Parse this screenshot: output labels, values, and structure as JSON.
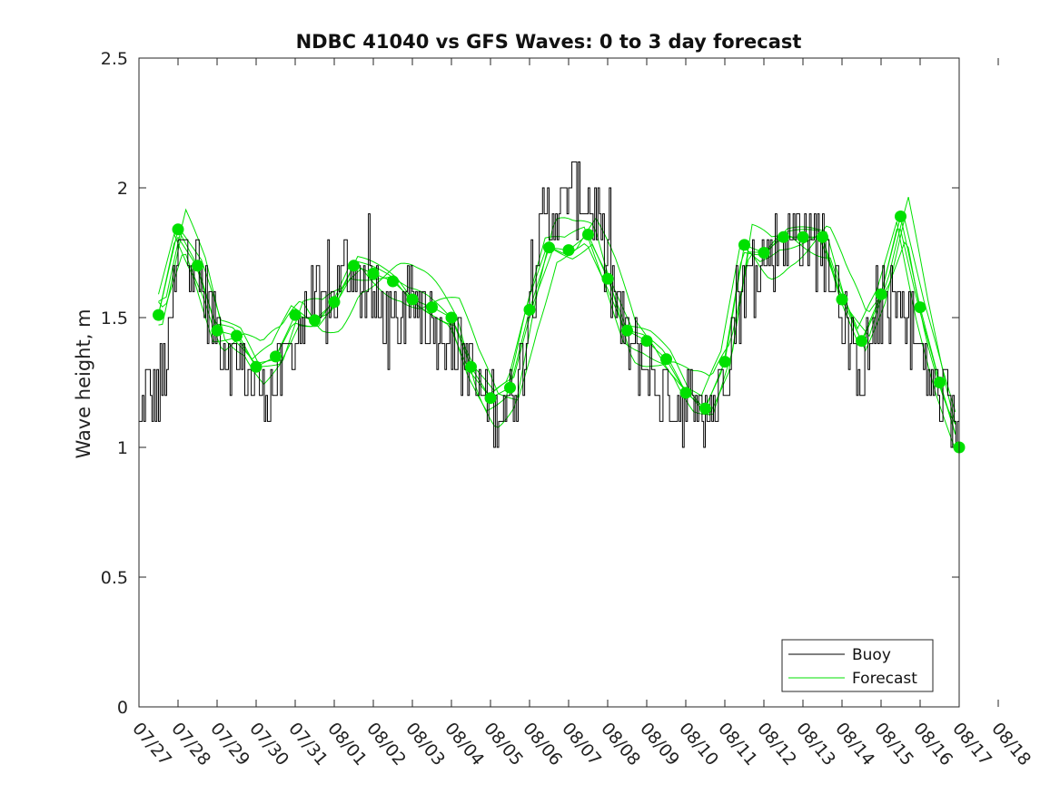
{
  "chart_data": {
    "type": "line",
    "title": "NDBC 41040 vs GFS Waves: 0 to 3 day forecast",
    "xlabel": "",
    "ylabel": "Wave height, m",
    "ylim": [
      0,
      2.5
    ],
    "y_ticks": [
      0,
      0.5,
      1,
      1.5,
      2,
      2.5
    ],
    "y_tick_labels": [
      "0",
      "0.5",
      "1",
      "1.5",
      "2",
      "2.5"
    ],
    "x_range_days": [
      0,
      21
    ],
    "x_tick_labels": [
      "07/27",
      "07/28",
      "07/29",
      "07/30",
      "07/31",
      "08/01",
      "08/02",
      "08/03",
      "08/04",
      "08/05",
      "08/06",
      "08/07",
      "08/08",
      "08/09",
      "08/10",
      "08/11",
      "08/12",
      "08/13",
      "08/14",
      "08/15",
      "08/16",
      "08/17",
      "08/18"
    ],
    "legend": {
      "placement": "bottom-right",
      "entries": [
        "Buoy",
        "Forecast"
      ]
    },
    "colors": {
      "buoy": "#000000",
      "forecast": "#00e000",
      "marker": "#00e000"
    },
    "buoy_anchors": [
      [
        0.0,
        1.05
      ],
      [
        0.15,
        1.2
      ],
      [
        0.5,
        1.2
      ],
      [
        0.8,
        1.45
      ],
      [
        1.0,
        1.75
      ],
      [
        1.2,
        1.85
      ],
      [
        1.4,
        1.7
      ],
      [
        1.7,
        1.55
      ],
      [
        2.0,
        1.45
      ],
      [
        2.3,
        1.38
      ],
      [
        2.6,
        1.32
      ],
      [
        2.9,
        1.25
      ],
      [
        3.2,
        1.22
      ],
      [
        3.5,
        1.25
      ],
      [
        3.8,
        1.35
      ],
      [
        4.1,
        1.45
      ],
      [
        4.4,
        1.55
      ],
      [
        4.7,
        1.5
      ],
      [
        5.0,
        1.6
      ],
      [
        5.3,
        1.7
      ],
      [
        5.6,
        1.65
      ],
      [
        5.9,
        1.6
      ],
      [
        6.2,
        1.5
      ],
      [
        6.5,
        1.45
      ],
      [
        6.8,
        1.5
      ],
      [
        7.1,
        1.55
      ],
      [
        7.4,
        1.5
      ],
      [
        7.7,
        1.45
      ],
      [
        8.0,
        1.42
      ],
      [
        8.3,
        1.35
      ],
      [
        8.6,
        1.25
      ],
      [
        8.9,
        1.18
      ],
      [
        9.2,
        1.15
      ],
      [
        9.5,
        1.2
      ],
      [
        9.8,
        1.3
      ],
      [
        10.0,
        1.55
      ],
      [
        10.3,
        1.85
      ],
      [
        10.6,
        1.9
      ],
      [
        10.9,
        1.95
      ],
      [
        11.1,
        2.0
      ],
      [
        11.4,
        1.95
      ],
      [
        11.7,
        1.9
      ],
      [
        12.0,
        1.65
      ],
      [
        12.3,
        1.5
      ],
      [
        12.6,
        1.38
      ],
      [
        12.9,
        1.32
      ],
      [
        13.2,
        1.25
      ],
      [
        13.5,
        1.2
      ],
      [
        13.8,
        1.18
      ],
      [
        14.1,
        1.15
      ],
      [
        14.4,
        1.12
      ],
      [
        14.7,
        1.15
      ],
      [
        15.0,
        1.3
      ],
      [
        15.3,
        1.55
      ],
      [
        15.6,
        1.65
      ],
      [
        15.9,
        1.7
      ],
      [
        16.2,
        1.75
      ],
      [
        16.5,
        1.8
      ],
      [
        16.8,
        1.82
      ],
      [
        17.1,
        1.8
      ],
      [
        17.4,
        1.78
      ],
      [
        17.7,
        1.7
      ],
      [
        18.0,
        1.55
      ],
      [
        18.2,
        1.35
      ],
      [
        18.5,
        1.3
      ],
      [
        18.8,
        1.45
      ],
      [
        19.1,
        1.55
      ],
      [
        19.4,
        1.55
      ],
      [
        19.7,
        1.5
      ],
      [
        20.0,
        1.35
      ],
      [
        20.3,
        1.25
      ],
      [
        20.6,
        1.15
      ],
      [
        20.85,
        1.1
      ],
      [
        21.0,
        1.05
      ]
    ],
    "forecast_points": [
      [
        0.5,
        1.51
      ],
      [
        1.0,
        1.84
      ],
      [
        1.5,
        1.7
      ],
      [
        2.0,
        1.45
      ],
      [
        2.5,
        1.43
      ],
      [
        3.0,
        1.31
      ],
      [
        3.5,
        1.35
      ],
      [
        4.0,
        1.51
      ],
      [
        4.5,
        1.49
      ],
      [
        5.0,
        1.56
      ],
      [
        5.5,
        1.7
      ],
      [
        6.0,
        1.67
      ],
      [
        6.5,
        1.64
      ],
      [
        7.0,
        1.57
      ],
      [
        7.5,
        1.54
      ],
      [
        8.0,
        1.5
      ],
      [
        8.5,
        1.31
      ],
      [
        9.0,
        1.19
      ],
      [
        9.5,
        1.23
      ],
      [
        10.0,
        1.53
      ],
      [
        10.5,
        1.77
      ],
      [
        11.0,
        1.76
      ],
      [
        11.5,
        1.82
      ],
      [
        12.0,
        1.65
      ],
      [
        12.5,
        1.45
      ],
      [
        13.0,
        1.41
      ],
      [
        13.5,
        1.34
      ],
      [
        14.0,
        1.21
      ],
      [
        14.5,
        1.15
      ],
      [
        15.0,
        1.33
      ],
      [
        15.5,
        1.78
      ],
      [
        16.0,
        1.75
      ],
      [
        16.5,
        1.81
      ],
      [
        17.0,
        1.81
      ],
      [
        17.5,
        1.81
      ],
      [
        18.0,
        1.57
      ],
      [
        18.5,
        1.41
      ],
      [
        19.0,
        1.59
      ],
      [
        19.5,
        1.89
      ],
      [
        20.0,
        1.54
      ],
      [
        20.5,
        1.25
      ],
      [
        21.0,
        1.0
      ]
    ]
  }
}
